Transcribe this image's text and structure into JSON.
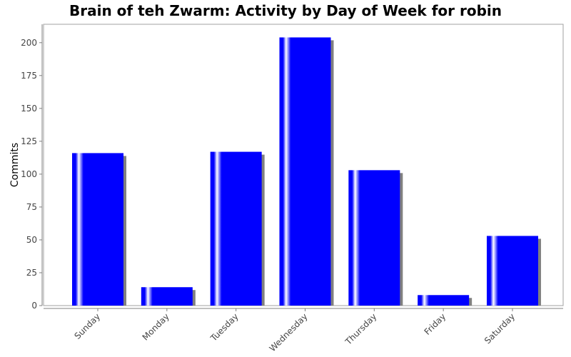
{
  "chart_data": {
    "type": "bar",
    "title": "Brain of teh Zwarm: Activity by Day of Week for robin",
    "xlabel": "",
    "ylabel": "Commits",
    "categories": [
      "Sunday",
      "Monday",
      "Tuesday",
      "Wednesday",
      "Thursday",
      "Friday",
      "Saturday"
    ],
    "values": [
      116,
      14,
      117,
      204,
      103,
      8,
      53
    ],
    "ylim": [
      0,
      214
    ],
    "yticks": [
      "0",
      "25",
      "50",
      "75",
      "100",
      "125",
      "150",
      "175",
      "200"
    ],
    "grid": false,
    "legend": "none",
    "bar_color": "#0000ff",
    "highlight_color": "#ffffff",
    "shadow_color": "#808080"
  }
}
